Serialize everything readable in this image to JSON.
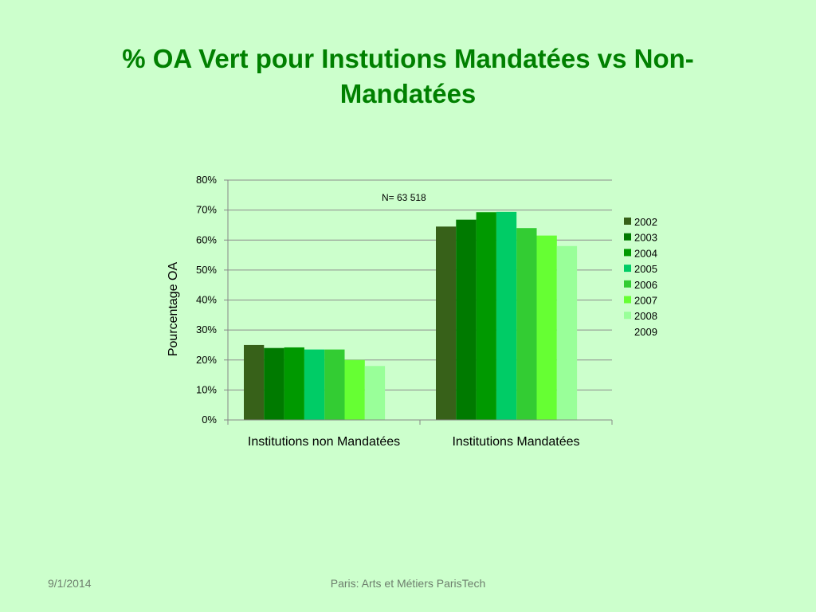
{
  "slide": {
    "title": "% OA Vert pour Instutions Mandatées vs Non-Mandatées",
    "footer_date": "9/1/2014",
    "footer_center": "Paris: Arts et Métiers ParisTech"
  },
  "chart_data": {
    "type": "bar",
    "title": "",
    "xlabel": "",
    "ylabel": "Pourcentage OA",
    "ylim": [
      0,
      80
    ],
    "y_ticks": [
      "0%",
      "10%",
      "20%",
      "30%",
      "40%",
      "50%",
      "60%",
      "70%",
      "80%"
    ],
    "grid": true,
    "legend_position": "right",
    "annotation": "N= 63 518",
    "categories": [
      "Institutions non Mandatées",
      "Institutions Mandatées"
    ],
    "series": [
      {
        "name": "2002",
        "color": "#376119",
        "values": [
          25,
          64.5
        ]
      },
      {
        "name": "2003",
        "color": "#007a00",
        "values": [
          24,
          66.8
        ]
      },
      {
        "name": "2004",
        "color": "#009900",
        "values": [
          24.2,
          69.3
        ]
      },
      {
        "name": "2005",
        "color": "#00cc66",
        "values": [
          23.5,
          69.4
        ]
      },
      {
        "name": "2006",
        "color": "#33cc33",
        "values": [
          23.5,
          64
        ]
      },
      {
        "name": "2007",
        "color": "#66ff33",
        "values": [
          20,
          61.5
        ]
      },
      {
        "name": "2008",
        "color": "#99ff99",
        "values": [
          18,
          58
        ]
      },
      {
        "name": "2009",
        "color": "#ccffcc",
        "values": [
          null,
          null
        ]
      }
    ]
  }
}
